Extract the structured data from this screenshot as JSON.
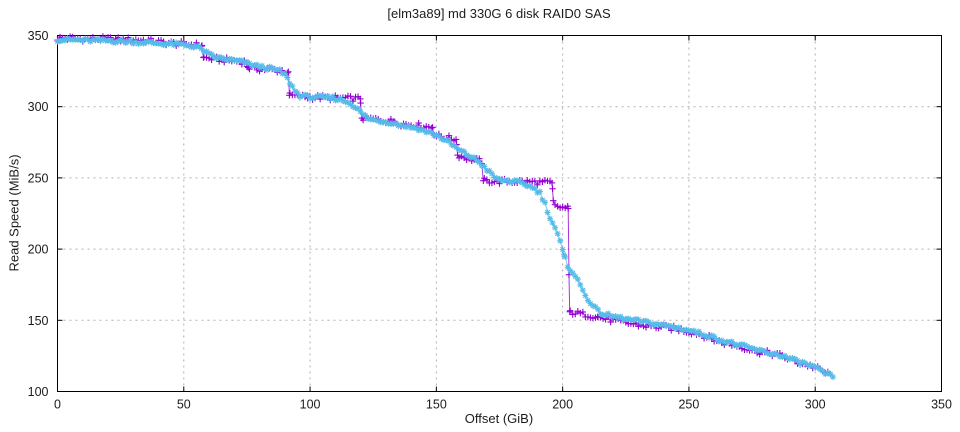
{
  "page": {
    "background": "#ffffff"
  },
  "chart_data": {
    "type": "line",
    "title": "[elm3a89] md 330G 6 disk RAID0 SAS",
    "xlabel": "Offset (GiB)",
    "ylabel": "Read Speed (MiB/s)",
    "xlim": [
      0,
      350
    ],
    "ylim": [
      100,
      350
    ],
    "xticks": [
      0,
      50,
      100,
      150,
      200,
      250,
      300,
      350
    ],
    "yticks": [
      100,
      150,
      200,
      250,
      300,
      350
    ],
    "grid": true,
    "legend": "none",
    "grid_color": "#b0b0b0",
    "axis_color": "#000000",
    "text_color": "#1c1c1c",
    "series": [
      {
        "name": "read-pass-plus",
        "marker": "plus",
        "color": "#9400d3",
        "line": true,
        "noise_band": 1.9,
        "points": [
          [
            0,
            348
          ],
          [
            6,
            348
          ],
          [
            12,
            347.5
          ],
          [
            18,
            347.5
          ],
          [
            24,
            347
          ],
          [
            30,
            347
          ],
          [
            36,
            346.5
          ],
          [
            40,
            345.5
          ],
          [
            45,
            344.5
          ],
          [
            50,
            344
          ],
          [
            54,
            343.5
          ],
          [
            57.2,
            343
          ],
          [
            57.8,
            334.5
          ],
          [
            62,
            333.5
          ],
          [
            68,
            332.5
          ],
          [
            74,
            331.5
          ],
          [
            75.5,
            327.5
          ],
          [
            80,
            326.5
          ],
          [
            85,
            326
          ],
          [
            91.4,
            324.5
          ],
          [
            91.8,
            308
          ],
          [
            97,
            307
          ],
          [
            104,
            306.5
          ],
          [
            112,
            306
          ],
          [
            119.9,
            305.5
          ],
          [
            120.5,
            292
          ],
          [
            126,
            291
          ],
          [
            133.5,
            289.5
          ],
          [
            136,
            288
          ],
          [
            142,
            287
          ],
          [
            148.5,
            285.5
          ],
          [
            149.2,
            280
          ],
          [
            153,
            278.5
          ],
          [
            157.8,
            277
          ],
          [
            158.4,
            266
          ],
          [
            163,
            263.5
          ],
          [
            168,
            261.5
          ],
          [
            168.6,
            248
          ],
          [
            175,
            247.5
          ],
          [
            182,
            247.5
          ],
          [
            189,
            247
          ],
          [
            195.8,
            246.5
          ],
          [
            196.3,
            234
          ],
          [
            197,
            230
          ],
          [
            202.2,
            228.5
          ],
          [
            202.5,
            182
          ],
          [
            202.8,
            156
          ],
          [
            207,
            154.5
          ],
          [
            211,
            153.5
          ],
          [
            213.8,
            152.5
          ],
          [
            217,
            151
          ],
          [
            221,
            149.5
          ],
          [
            226,
            148
          ],
          [
            231,
            146.5
          ],
          [
            237,
            145.5
          ],
          [
            243,
            144.5
          ],
          [
            248,
            143
          ],
          [
            252,
            141.5
          ],
          [
            255,
            140
          ],
          [
            259,
            137
          ],
          [
            263,
            134.5
          ],
          [
            267,
            133
          ],
          [
            271,
            131.5
          ],
          [
            275,
            129
          ],
          [
            279,
            127.5
          ],
          [
            283,
            126.5
          ],
          [
            287,
            125
          ],
          [
            290,
            122.5
          ],
          [
            293,
            120.5
          ],
          [
            296,
            119
          ],
          [
            299,
            117.5
          ],
          [
            301,
            116
          ],
          [
            303,
            114
          ],
          [
            305,
            112.5
          ],
          [
            306,
            111.5
          ]
        ]
      },
      {
        "name": "read-pass-asterisk",
        "marker": "asterisk",
        "color": "#55bbe9",
        "line": true,
        "noise_band": 1.3,
        "points": [
          [
            0,
            347
          ],
          [
            6,
            347
          ],
          [
            12,
            346.5
          ],
          [
            18,
            346.5
          ],
          [
            24,
            346
          ],
          [
            30,
            345.5
          ],
          [
            36,
            345
          ],
          [
            40,
            344.5
          ],
          [
            45,
            344
          ],
          [
            50,
            343.5
          ],
          [
            54,
            342.5
          ],
          [
            57,
            340.5
          ],
          [
            60,
            336.5
          ],
          [
            63,
            334.5
          ],
          [
            68,
            333
          ],
          [
            73,
            331.5
          ],
          [
            76,
            330
          ],
          [
            79,
            328.5
          ],
          [
            82,
            327.5
          ],
          [
            85,
            326.5
          ],
          [
            88,
            325
          ],
          [
            90,
            322.5
          ],
          [
            92,
            317
          ],
          [
            94,
            311
          ],
          [
            96,
            308
          ],
          [
            99,
            307
          ],
          [
            104,
            306.5
          ],
          [
            109,
            306
          ],
          [
            113,
            304.5
          ],
          [
            116,
            302.5
          ],
          [
            118,
            299.5
          ],
          [
            120,
            296
          ],
          [
            122,
            293
          ],
          [
            124,
            291
          ],
          [
            128,
            290
          ],
          [
            132,
            289
          ],
          [
            135,
            287.5
          ],
          [
            139,
            286
          ],
          [
            143,
            284.5
          ],
          [
            147,
            282
          ],
          [
            150,
            280
          ],
          [
            153,
            277
          ],
          [
            156,
            273.5
          ],
          [
            159,
            269.5
          ],
          [
            162,
            266.5
          ],
          [
            165,
            263.5
          ],
          [
            167,
            261
          ],
          [
            169,
            257.5
          ],
          [
            171,
            254
          ],
          [
            173,
            250.5
          ],
          [
            175,
            248.5
          ],
          [
            178,
            248
          ],
          [
            182,
            247
          ],
          [
            185,
            245.5
          ],
          [
            188,
            243.5
          ],
          [
            191,
            239.5
          ],
          [
            193,
            232
          ],
          [
            195,
            222
          ],
          [
            197,
            215
          ],
          [
            199,
            205
          ],
          [
            200.5,
            196
          ],
          [
            202,
            188
          ],
          [
            204,
            184
          ],
          [
            206,
            178
          ],
          [
            208,
            171
          ],
          [
            210,
            165
          ],
          [
            212,
            160
          ],
          [
            214,
            156.5
          ],
          [
            216,
            154.5
          ],
          [
            219,
            153
          ],
          [
            222,
            152
          ],
          [
            226,
            150.5
          ],
          [
            230,
            149.5
          ],
          [
            235,
            148
          ],
          [
            240,
            146.5
          ],
          [
            245,
            145
          ],
          [
            250,
            143
          ],
          [
            254,
            141
          ],
          [
            258,
            139
          ],
          [
            262,
            136.5
          ],
          [
            266,
            134.5
          ],
          [
            270,
            132.5
          ],
          [
            274,
            130.5
          ],
          [
            278,
            128.5
          ],
          [
            282,
            127
          ],
          [
            286,
            125.5
          ],
          [
            290,
            123
          ],
          [
            293,
            121
          ],
          [
            296,
            119.5
          ],
          [
            299,
            117.5
          ],
          [
            301,
            115.5
          ],
          [
            303,
            113.5
          ],
          [
            305,
            112
          ],
          [
            307,
            110.5
          ]
        ]
      }
    ]
  }
}
